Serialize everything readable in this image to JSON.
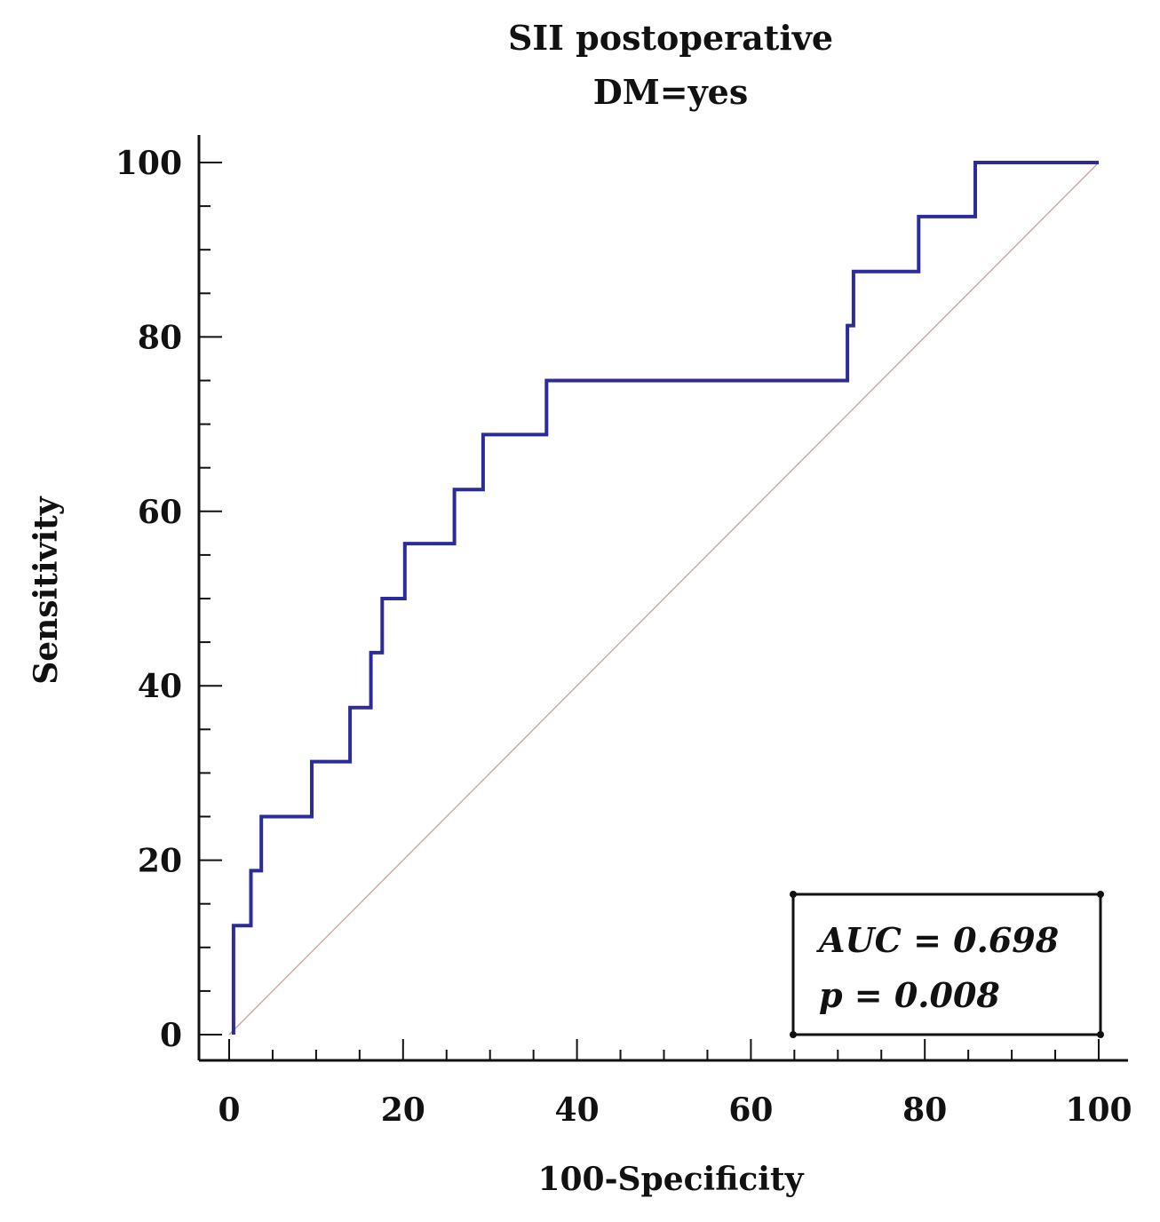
{
  "chart_data": {
    "type": "line",
    "title": "SII postoperative",
    "subtitle": "DM=yes",
    "xlabel": "100-Specificity",
    "ylabel": "Sensitivity",
    "xlim": [
      0,
      100
    ],
    "ylim": [
      0,
      100
    ],
    "x_ticks": [
      "0",
      "20",
      "40",
      "60",
      "80",
      "100"
    ],
    "y_ticks": [
      "0",
      "20",
      "40",
      "60",
      "80",
      "100"
    ],
    "grid": false,
    "series": [
      {
        "role": "roc-curve",
        "color": "#2b2b9a",
        "step": true,
        "x": [
          0.5,
          0.5,
          2.5,
          2.5,
          3.7,
          3.7,
          9.5,
          9.5,
          13.9,
          13.9,
          16.3,
          16.3,
          17.6,
          17.6,
          20.2,
          20.2,
          25.9,
          25.9,
          29.2,
          29.2,
          36.5,
          36.5,
          71.1,
          71.1,
          71.8,
          71.8,
          79.3,
          79.3,
          85.8,
          85.8,
          100
        ],
        "y": [
          0,
          12.5,
          12.5,
          18.8,
          18.8,
          25,
          25,
          31.3,
          31.3,
          37.5,
          37.5,
          43.8,
          43.8,
          50,
          50,
          56.3,
          56.3,
          62.5,
          62.5,
          68.8,
          68.8,
          75,
          75,
          81.3,
          81.3,
          87.5,
          87.5,
          93.8,
          93.8,
          100,
          100
        ]
      },
      {
        "role": "reference-diagonal",
        "color": "#c9a0a0",
        "x": [
          0,
          100
        ],
        "y": [
          0,
          100
        ]
      }
    ],
    "annotations": {
      "auc_text": "AUC = 0.698",
      "p_text": "p = 0.008"
    }
  }
}
